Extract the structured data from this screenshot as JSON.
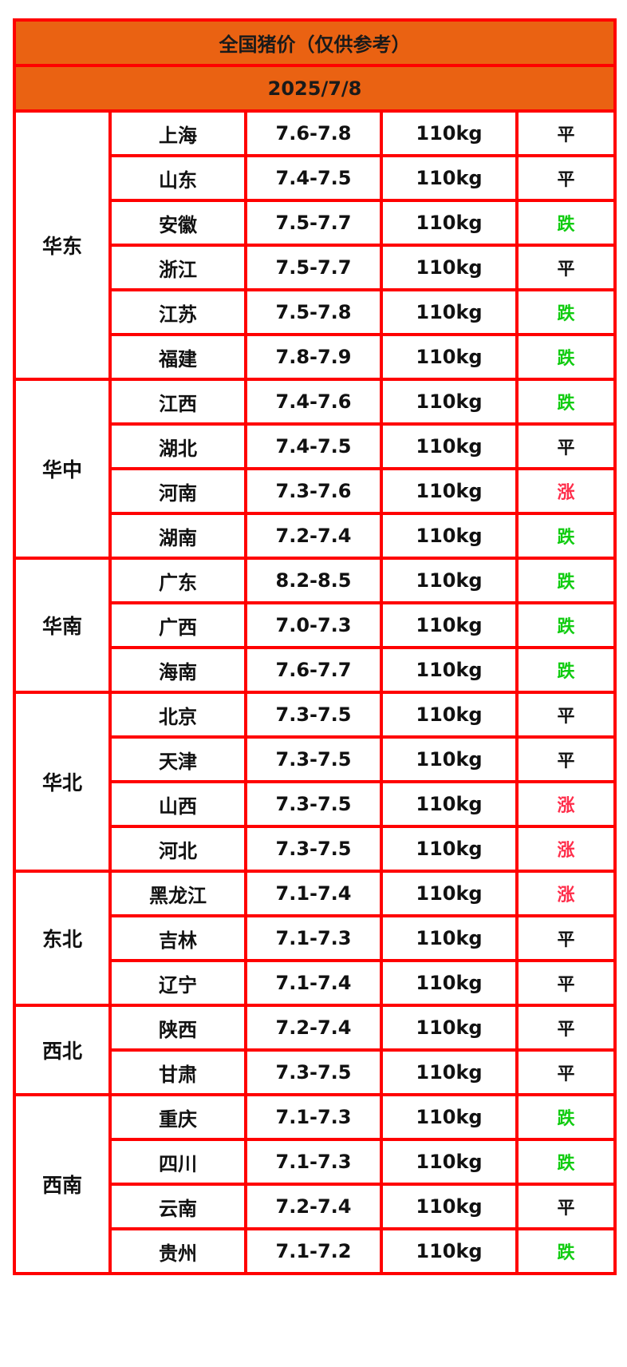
{
  "title": "全国猪价（仅供参考）",
  "date": "2025/7/8",
  "colors": {
    "header_bg": "#ea6212",
    "border": "#ff0000",
    "up": "#ff2d4a",
    "down": "#11cc11",
    "flat": "#111111"
  },
  "regions": [
    {
      "name": "华东",
      "rows": [
        {
          "province": "上海",
          "price": "7.6-7.8",
          "weight": "110kg",
          "trend": "平"
        },
        {
          "province": "山东",
          "price": "7.4-7.5",
          "weight": "110kg",
          "trend": "平"
        },
        {
          "province": "安徽",
          "price": "7.5-7.7",
          "weight": "110kg",
          "trend": "跌"
        },
        {
          "province": "浙江",
          "price": "7.5-7.7",
          "weight": "110kg",
          "trend": "平"
        },
        {
          "province": "江苏",
          "price": "7.5-7.8",
          "weight": "110kg",
          "trend": "跌"
        },
        {
          "province": "福建",
          "price": "7.8-7.9",
          "weight": "110kg",
          "trend": "跌"
        }
      ]
    },
    {
      "name": "华中",
      "rows": [
        {
          "province": "江西",
          "price": "7.4-7.6",
          "weight": "110kg",
          "trend": "跌"
        },
        {
          "province": "湖北",
          "price": "7.4-7.5",
          "weight": "110kg",
          "trend": "平"
        },
        {
          "province": "河南",
          "price": "7.3-7.6",
          "weight": "110kg",
          "trend": "涨"
        },
        {
          "province": "湖南",
          "price": "7.2-7.4",
          "weight": "110kg",
          "trend": "跌"
        }
      ]
    },
    {
      "name": "华南",
      "rows": [
        {
          "province": "广东",
          "price": "8.2-8.5",
          "weight": "110kg",
          "trend": "跌"
        },
        {
          "province": "广西",
          "price": "7.0-7.3",
          "weight": "110kg",
          "trend": "跌"
        },
        {
          "province": "海南",
          "price": "7.6-7.7",
          "weight": "110kg",
          "trend": "跌"
        }
      ]
    },
    {
      "name": "华北",
      "rows": [
        {
          "province": "北京",
          "price": "7.3-7.5",
          "weight": "110kg",
          "trend": "平"
        },
        {
          "province": "天津",
          "price": "7.3-7.5",
          "weight": "110kg",
          "trend": "平"
        },
        {
          "province": "山西",
          "price": "7.3-7.5",
          "weight": "110kg",
          "trend": "涨"
        },
        {
          "province": "河北",
          "price": "7.3-7.5",
          "weight": "110kg",
          "trend": "涨"
        }
      ]
    },
    {
      "name": "东北",
      "rows": [
        {
          "province": "黑龙江",
          "price": "7.1-7.4",
          "weight": "110kg",
          "trend": "涨"
        },
        {
          "province": "吉林",
          "price": "7.1-7.3",
          "weight": "110kg",
          "trend": "平"
        },
        {
          "province": "辽宁",
          "price": "7.1-7.4",
          "weight": "110kg",
          "trend": "平"
        }
      ]
    },
    {
      "name": "西北",
      "rows": [
        {
          "province": "陕西",
          "price": "7.2-7.4",
          "weight": "110kg",
          "trend": "平"
        },
        {
          "province": "甘肃",
          "price": "7.3-7.5",
          "weight": "110kg",
          "trend": "平"
        }
      ]
    },
    {
      "name": "西南",
      "rows": [
        {
          "province": "重庆",
          "price": "7.1-7.3",
          "weight": "110kg",
          "trend": "跌"
        },
        {
          "province": "四川",
          "price": "7.1-7.3",
          "weight": "110kg",
          "trend": "跌"
        },
        {
          "province": "云南",
          "price": "7.2-7.4",
          "weight": "110kg",
          "trend": "平"
        },
        {
          "province": "贵州",
          "price": "7.1-7.2",
          "weight": "110kg",
          "trend": "跌"
        }
      ]
    }
  ]
}
